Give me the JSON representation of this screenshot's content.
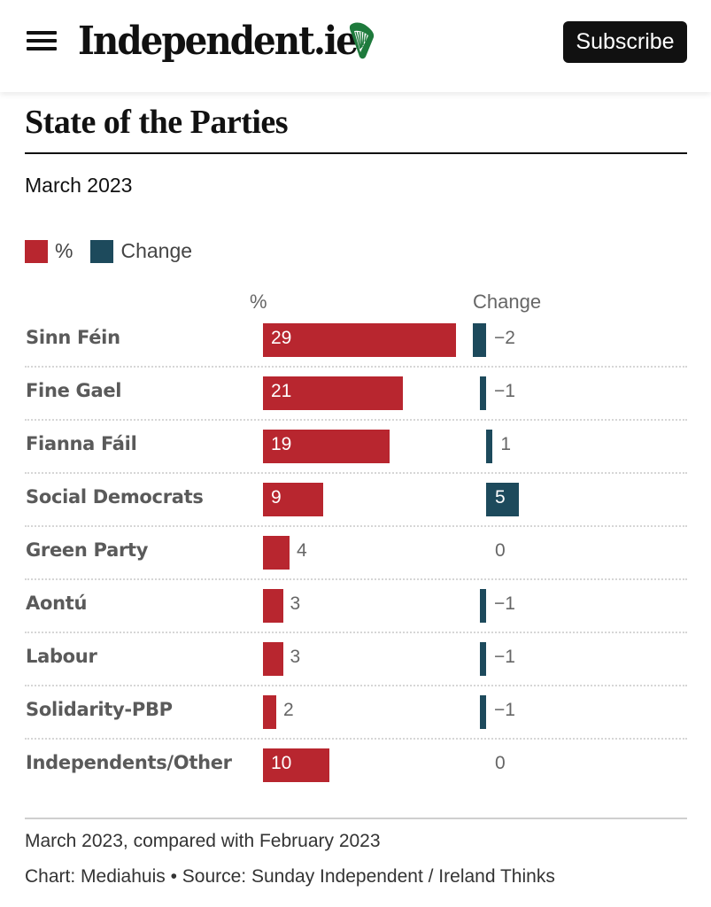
{
  "header": {
    "logo_text": "Independent.ie",
    "logo_icon": "harp-icon",
    "menu_icon": "hamburger-menu-icon",
    "subscribe_label": "Subscribe"
  },
  "colors": {
    "percent": "#b8262f",
    "change": "#1d4a5c",
    "harp": "#1e7a3c"
  },
  "chart_data": {
    "type": "bar",
    "title": "State of the Parties",
    "subtitle": "March 2023",
    "legend": [
      {
        "name": "%",
        "color": "#b8262f"
      },
      {
        "name": "Change",
        "color": "#1d4a5c"
      }
    ],
    "legend_position": "top-left",
    "column_headers": {
      "percent": "%",
      "change": "Change"
    },
    "categories": [
      "Sinn Féin",
      "Fine Gael",
      "Fianna Fáil",
      "Social Democrats",
      "Green Party",
      "Aontú",
      "Labour",
      "Solidarity-PBP",
      "Independents/Other"
    ],
    "series": [
      {
        "name": "%",
        "values": [
          29,
          21,
          19,
          9,
          4,
          3,
          3,
          2,
          10
        ]
      },
      {
        "name": "Change",
        "values": [
          -2,
          -1,
          1,
          5,
          0,
          -1,
          -1,
          -1,
          0
        ]
      }
    ],
    "change_labels": [
      "−2",
      "−1",
      "1",
      "5",
      "0",
      "−1",
      "−1",
      "−1",
      "0"
    ],
    "xlabel": "",
    "ylabel": "",
    "percent_range": [
      0,
      30
    ],
    "change_range": [
      -2,
      5
    ],
    "grid": false,
    "note": "March 2023, compared with February 2023",
    "source": "Chart: Mediahuis • Source: Sunday Independent / Ireland Thinks"
  }
}
